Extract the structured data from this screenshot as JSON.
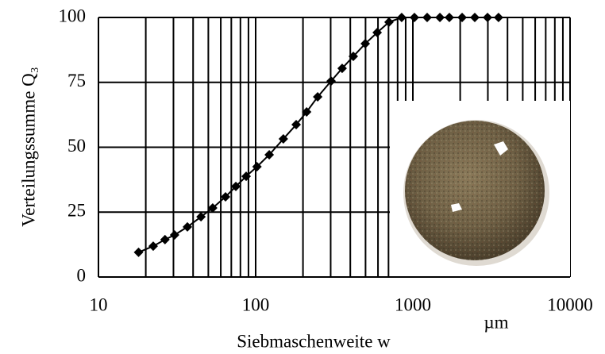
{
  "chart_data": {
    "type": "line",
    "y_label": "Verteilungssumme Q₃",
    "x_label": "Siebmaschenweite w",
    "x_unit": "µm",
    "log_x": true,
    "grid": true,
    "color": "#000000",
    "x": [
      18,
      22.3,
      26.5,
      30.5,
      36.8,
      44.9,
      53.3,
      64.3,
      74.8,
      87,
      102,
      122,
      150,
      181,
      211,
      248,
      302,
      355,
      418,
      498,
      593,
      705,
      849,
      1023,
      1233,
      1486,
      1707,
      2057,
      2477,
      2985,
      3508
    ],
    "values": [
      9.5,
      11.9,
      14.4,
      16.2,
      19.3,
      23.2,
      26.6,
      30.9,
      34.9,
      38.8,
      42.5,
      47.1,
      53.2,
      58.7,
      63.6,
      69.4,
      75.5,
      80.4,
      85,
      89.9,
      94.2,
      98.2,
      100,
      100,
      100,
      100,
      100,
      100,
      100,
      100,
      100
    ],
    "xlim": [
      10,
      10000
    ],
    "ylim": [
      0,
      100
    ],
    "xticks": [
      10,
      100,
      1000,
      10000
    ],
    "x_minor_ticks": [
      20,
      30,
      40,
      50,
      60,
      70,
      80,
      90,
      200,
      300,
      400,
      500,
      600,
      700,
      800,
      900,
      2000,
      3000,
      4000,
      5000,
      6000,
      7000,
      8000,
      9000
    ],
    "yticks": [
      0,
      25,
      50,
      75,
      100
    ]
  }
}
